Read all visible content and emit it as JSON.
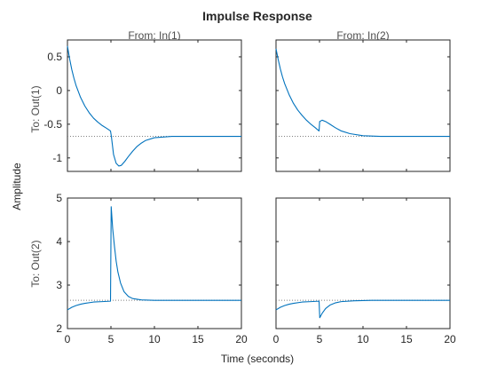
{
  "chart_data": {
    "type": "line",
    "title": "Impulse Response",
    "xlabel": "Time (seconds)",
    "ylabel": "Amplitude",
    "columns": [
      "From: In(1)",
      "From: In(2)"
    ],
    "rows": [
      "To: Out(1)",
      "To: Out(2)"
    ],
    "xlim": [
      0,
      20
    ],
    "xticks": [
      0,
      5,
      10,
      15,
      20
    ],
    "grid": false,
    "line_color": "#0072BD",
    "reference_color": "#808080",
    "row_axes": [
      {
        "ylim": [
          -1.2,
          0.75
        ],
        "yticks": [
          0.5,
          0,
          -0.5,
          -1
        ],
        "tick_labels": [
          "0.5",
          "0",
          "-0.5",
          "-1"
        ]
      },
      {
        "ylim": [
          2,
          5
        ],
        "yticks": [
          2,
          3,
          4,
          5
        ],
        "tick_labels": [
          "2",
          "3",
          "4",
          "5"
        ]
      }
    ],
    "xtick_labels": [
      "0",
      "5",
      "10",
      "15",
      "20"
    ],
    "panels": [
      {
        "name": "Out(1) from In(1)",
        "steady_state": -0.68,
        "series": [
          {
            "x": 0,
            "y": 0.66
          },
          {
            "x": 0.25,
            "y": 0.47
          },
          {
            "x": 0.5,
            "y": 0.31
          },
          {
            "x": 0.75,
            "y": 0.18
          },
          {
            "x": 1,
            "y": 0.07
          },
          {
            "x": 1.5,
            "y": -0.1
          },
          {
            "x": 2,
            "y": -0.23
          },
          {
            "x": 2.5,
            "y": -0.33
          },
          {
            "x": 3,
            "y": -0.41
          },
          {
            "x": 3.5,
            "y": -0.47
          },
          {
            "x": 4,
            "y": -0.52
          },
          {
            "x": 4.5,
            "y": -0.56
          },
          {
            "x": 4.95,
            "y": -0.6
          },
          {
            "x": 5.05,
            "y": -0.68
          },
          {
            "x": 5.3,
            "y": -0.95
          },
          {
            "x": 5.6,
            "y": -1.08
          },
          {
            "x": 5.9,
            "y": -1.12
          },
          {
            "x": 6.2,
            "y": -1.11
          },
          {
            "x": 6.6,
            "y": -1.05
          },
          {
            "x": 7,
            "y": -0.98
          },
          {
            "x": 7.5,
            "y": -0.9
          },
          {
            "x": 8,
            "y": -0.83
          },
          {
            "x": 8.5,
            "y": -0.78
          },
          {
            "x": 9,
            "y": -0.74
          },
          {
            "x": 10,
            "y": -0.7
          },
          {
            "x": 11,
            "y": -0.69
          },
          {
            "x": 12,
            "y": -0.68
          },
          {
            "x": 20,
            "y": -0.68
          }
        ]
      },
      {
        "name": "Out(1) from In(2)",
        "steady_state": -0.68,
        "series": [
          {
            "x": 0,
            "y": 0.62
          },
          {
            "x": 0.25,
            "y": 0.46
          },
          {
            "x": 0.5,
            "y": 0.32
          },
          {
            "x": 0.75,
            "y": 0.2
          },
          {
            "x": 1,
            "y": 0.1
          },
          {
            "x": 1.5,
            "y": -0.06
          },
          {
            "x": 2,
            "y": -0.19
          },
          {
            "x": 2.5,
            "y": -0.29
          },
          {
            "x": 3,
            "y": -0.37
          },
          {
            "x": 3.5,
            "y": -0.44
          },
          {
            "x": 4,
            "y": -0.5
          },
          {
            "x": 4.5,
            "y": -0.55
          },
          {
            "x": 4.95,
            "y": -0.6
          },
          {
            "x": 5.02,
            "y": -0.46
          },
          {
            "x": 5.3,
            "y": -0.44
          },
          {
            "x": 5.7,
            "y": -0.46
          },
          {
            "x": 6.2,
            "y": -0.5
          },
          {
            "x": 6.8,
            "y": -0.55
          },
          {
            "x": 7.5,
            "y": -0.6
          },
          {
            "x": 8.5,
            "y": -0.64
          },
          {
            "x": 10,
            "y": -0.67
          },
          {
            "x": 12,
            "y": -0.68
          },
          {
            "x": 20,
            "y": -0.68
          }
        ]
      },
      {
        "name": "Out(2) from In(1)",
        "steady_state": 2.65,
        "series": [
          {
            "x": 0,
            "y": 2.43
          },
          {
            "x": 0.5,
            "y": 2.49
          },
          {
            "x": 1,
            "y": 2.53
          },
          {
            "x": 1.5,
            "y": 2.56
          },
          {
            "x": 2,
            "y": 2.58
          },
          {
            "x": 3,
            "y": 2.61
          },
          {
            "x": 4,
            "y": 2.62
          },
          {
            "x": 4.95,
            "y": 2.63
          },
          {
            "x": 5.03,
            "y": 4.8
          },
          {
            "x": 5.2,
            "y": 4.3
          },
          {
            "x": 5.4,
            "y": 3.9
          },
          {
            "x": 5.6,
            "y": 3.55
          },
          {
            "x": 5.8,
            "y": 3.3
          },
          {
            "x": 6.1,
            "y": 3.05
          },
          {
            "x": 6.5,
            "y": 2.85
          },
          {
            "x": 7,
            "y": 2.74
          },
          {
            "x": 7.5,
            "y": 2.69
          },
          {
            "x": 8.5,
            "y": 2.66
          },
          {
            "x": 10,
            "y": 2.65
          },
          {
            "x": 20,
            "y": 2.65
          }
        ]
      },
      {
        "name": "Out(2) from In(2)",
        "steady_state": 2.65,
        "series": [
          {
            "x": 0,
            "y": 2.43
          },
          {
            "x": 0.5,
            "y": 2.49
          },
          {
            "x": 1,
            "y": 2.53
          },
          {
            "x": 1.5,
            "y": 2.56
          },
          {
            "x": 2,
            "y": 2.58
          },
          {
            "x": 3,
            "y": 2.61
          },
          {
            "x": 4,
            "y": 2.62
          },
          {
            "x": 4.95,
            "y": 2.63
          },
          {
            "x": 5.03,
            "y": 2.25
          },
          {
            "x": 5.3,
            "y": 2.35
          },
          {
            "x": 5.7,
            "y": 2.46
          },
          {
            "x": 6.2,
            "y": 2.54
          },
          {
            "x": 6.8,
            "y": 2.59
          },
          {
            "x": 7.5,
            "y": 2.62
          },
          {
            "x": 9,
            "y": 2.64
          },
          {
            "x": 11,
            "y": 2.65
          },
          {
            "x": 20,
            "y": 2.65
          }
        ]
      }
    ]
  }
}
